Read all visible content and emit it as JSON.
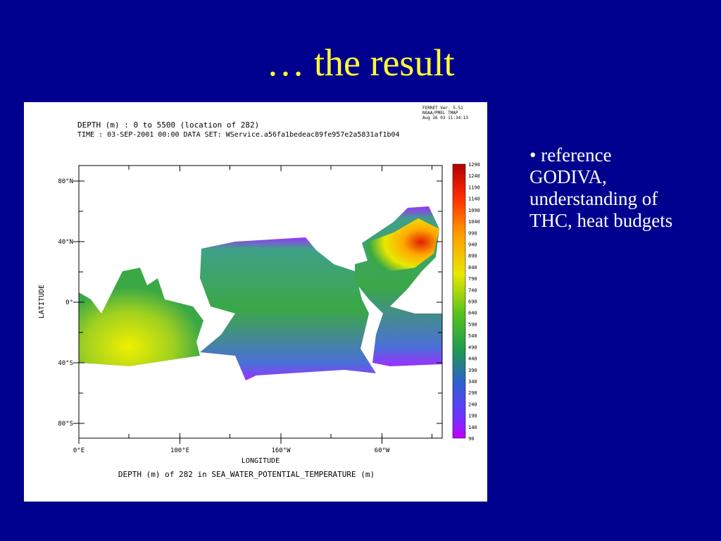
{
  "slide": {
    "title": "… the result",
    "bullets": [
      "reference GODIVA, understanding of THC, heat budgets"
    ]
  },
  "figure": {
    "header": [
      "DEPTH (m) : 0 to 5500 (location of 282)",
      "TIME : 03-SEP-2001 00:00   DATA SET: WService.a56fa1bedeac89fe957e2a5831af1b04"
    ],
    "stamp": [
      "FERRET Ver. 5.51",
      "NOAA/PMEL TMAP",
      "Aug 26 03 11:34:13"
    ],
    "y_label": "LATITUDE",
    "y_ticks": [
      "80°N",
      "40°N",
      "0°",
      "40°S",
      "80°S"
    ],
    "x_label": "LONGITUDE",
    "x_ticks": [
      "0°E",
      "100°E",
      "160°W",
      "60°W"
    ],
    "caption": "DEPTH (m) of 282 in SEA_WATER_POTENTIAL_TEMPERATURE (m)",
    "colorbar": [
      1290,
      1240,
      1190,
      1140,
      1090,
      1040,
      990,
      940,
      890,
      840,
      790,
      740,
      690,
      640,
      590,
      540,
      490,
      440,
      390,
      340,
      290,
      240,
      190,
      140,
      90
    ]
  }
}
